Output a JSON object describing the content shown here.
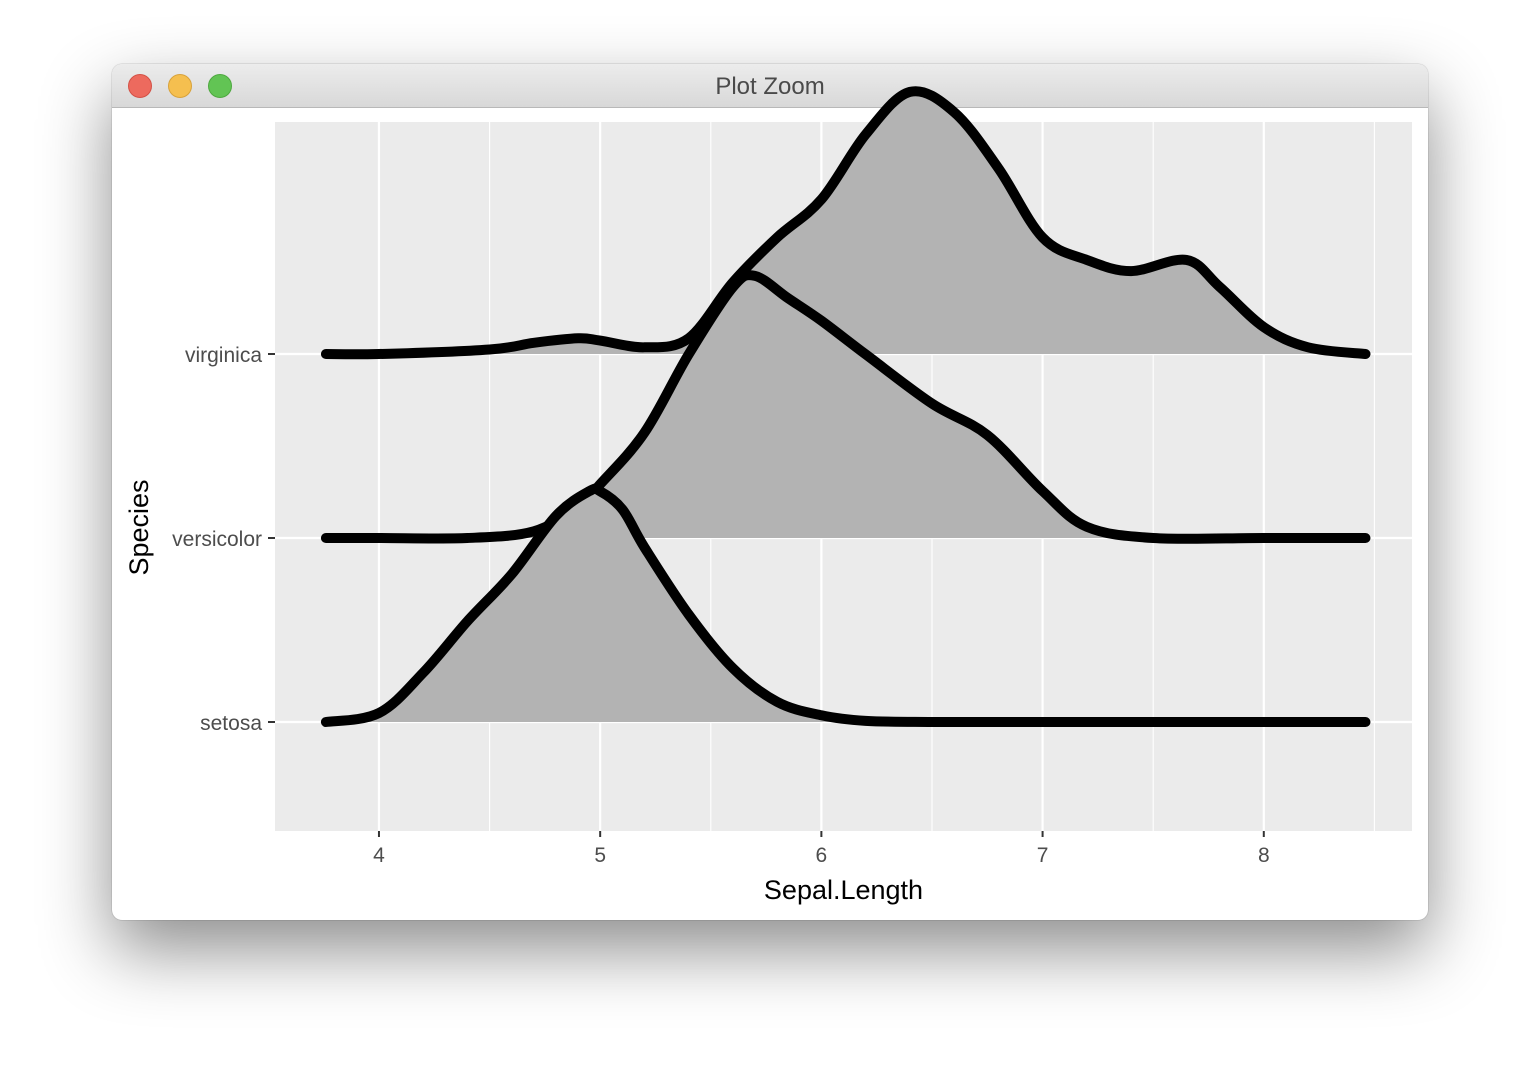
{
  "window": {
    "title": "Plot Zoom",
    "buttons": [
      "close",
      "minimize",
      "zoom"
    ]
  },
  "chart_data": {
    "type": "ridgeline",
    "title": "",
    "xlabel": "Sepal.Length",
    "ylabel": "Species",
    "xlim": [
      3.53,
      8.67
    ],
    "x_ticks": [
      4,
      5,
      6,
      7,
      8
    ],
    "categories": [
      "setosa",
      "versicolor",
      "virginica"
    ],
    "grid": true,
    "colors": {
      "panel": "#ebebeb",
      "grid": "#ffffff",
      "fill": "#b3b3b3",
      "line": "#000000",
      "axis_text": "#4d4d4d"
    },
    "series": [
      {
        "name": "setosa",
        "x": [
          3.76,
          4.0,
          4.2,
          4.4,
          4.6,
          4.8,
          4.95,
          5.0,
          5.1,
          5.2,
          5.4,
          5.6,
          5.8,
          6.0,
          6.2,
          6.5,
          7.0,
          7.5,
          8.0,
          8.46
        ],
        "values": [
          0.0,
          0.04,
          0.22,
          0.45,
          0.66,
          0.92,
          1.03,
          1.03,
          0.95,
          0.78,
          0.48,
          0.24,
          0.09,
          0.03,
          0.005,
          0.0,
          0.0,
          0.0,
          0.0,
          0.0
        ]
      },
      {
        "name": "versicolor",
        "x": [
          3.76,
          4.0,
          4.4,
          4.7,
          4.9,
          5.0,
          5.2,
          5.4,
          5.6,
          5.7,
          5.85,
          6.0,
          6.2,
          6.5,
          6.75,
          7.0,
          7.2,
          7.5,
          8.0,
          8.46
        ],
        "values": [
          0.0,
          0.0,
          0.0,
          0.03,
          0.14,
          0.24,
          0.47,
          0.82,
          1.12,
          1.17,
          1.07,
          0.97,
          0.82,
          0.6,
          0.46,
          0.21,
          0.05,
          0.0,
          0.0,
          0.0
        ]
      },
      {
        "name": "virginica",
        "x": [
          3.76,
          4.0,
          4.5,
          4.7,
          4.9,
          5.0,
          5.2,
          5.4,
          5.6,
          5.8,
          6.0,
          6.2,
          6.4,
          6.6,
          6.8,
          7.0,
          7.2,
          7.4,
          7.65,
          7.8,
          8.0,
          8.2,
          8.46
        ],
        "values": [
          0.0,
          0.0,
          0.02,
          0.05,
          0.07,
          0.06,
          0.03,
          0.07,
          0.32,
          0.52,
          0.69,
          0.98,
          1.17,
          1.08,
          0.83,
          0.52,
          0.42,
          0.37,
          0.42,
          0.3,
          0.12,
          0.03,
          0.0
        ]
      }
    ]
  }
}
